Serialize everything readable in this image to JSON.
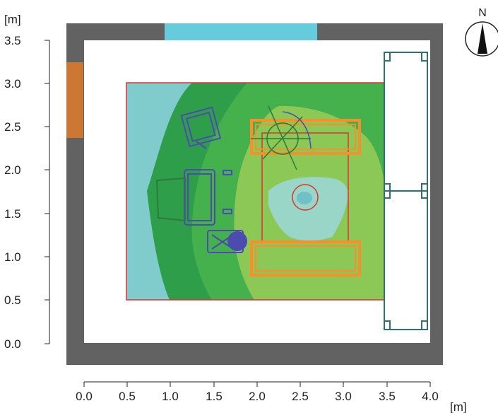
{
  "axes": {
    "y_unit": "[m]",
    "x_unit": "[m]",
    "y_ticks": [
      "3.5",
      "3.0",
      "2.5",
      "2.0",
      "1.5",
      "1.0",
      "0.5",
      "0.0"
    ],
    "x_ticks": [
      "0.0",
      "0.5",
      "1.0",
      "1.5",
      "2.0",
      "2.5",
      "3.0",
      "3.5",
      "4.0"
    ]
  },
  "compass": {
    "label": "N"
  },
  "room": {
    "width_m": 4.0,
    "depth_m": 3.5,
    "calc_area_m": {
      "x": [
        0.5,
        3.5
      ],
      "y": [
        0.5,
        3.0
      ]
    }
  },
  "colors": {
    "wall": "#626262",
    "window": "#66ccdd",
    "door": "#cc7733",
    "calc_border": "#dd3333",
    "zone_cyan": "#80cccc",
    "zone_dark_green": "#2f9e4a",
    "zone_mid_green": "#45b14d",
    "zone_light_green": "#8cc855",
    "zone_center_cyan": "#99d6c8",
    "furniture_orange": "#ff8c2a",
    "furniture_blue": "#4b4bb0",
    "furniture_green": "#2d7a3c",
    "wardrobe": "#2b7272"
  }
}
